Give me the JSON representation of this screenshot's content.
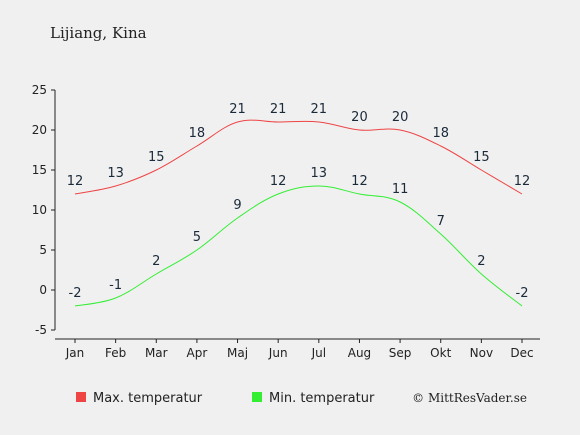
{
  "chart_data": {
    "type": "line",
    "title": "Lijiang, Kina",
    "categories": [
      "Jan",
      "Feb",
      "Mar",
      "Apr",
      "Maj",
      "Jun",
      "Jul",
      "Aug",
      "Sep",
      "Okt",
      "Nov",
      "Dec"
    ],
    "ylim": [
      -5,
      25
    ],
    "yticks": [
      -5,
      0,
      5,
      10,
      15,
      20,
      25
    ],
    "grid": false,
    "legend_position": "bottom-left",
    "series": [
      {
        "name": "Max. temperatur",
        "color": "#ee4444",
        "values": [
          12,
          13,
          15,
          18,
          21,
          21,
          21,
          20,
          20,
          18,
          15,
          12
        ]
      },
      {
        "name": "Min. temperatur",
        "color": "#33ee33",
        "values": [
          -2,
          -1,
          2,
          5,
          9,
          12,
          13,
          12,
          11,
          7,
          2,
          -2
        ]
      }
    ],
    "credit": "© MittResVader.se"
  }
}
